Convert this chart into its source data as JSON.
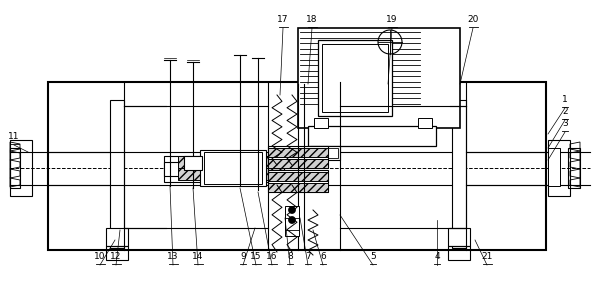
{
  "bg": "#ffffff",
  "lc": "#000000",
  "fig_w": 5.98,
  "fig_h": 2.82,
  "dpi": 100,
  "annotations": [
    [
      "1",
      [
        565,
        108
      ],
      [
        548,
        134
      ]
    ],
    [
      "2",
      [
        565,
        120
      ],
      [
        548,
        148
      ]
    ],
    [
      "3",
      [
        565,
        132
      ],
      [
        548,
        160
      ]
    ],
    [
      "4",
      [
        437,
        265
      ],
      [
        437,
        220
      ]
    ],
    [
      "5",
      [
        373,
        265
      ],
      [
        340,
        215
      ]
    ],
    [
      "6",
      [
        323,
        265
      ],
      [
        313,
        230
      ]
    ],
    [
      "7",
      [
        308,
        265
      ],
      [
        300,
        218
      ]
    ],
    [
      "8",
      [
        290,
        265
      ],
      [
        285,
        218
      ]
    ],
    [
      "9",
      [
        243,
        265
      ],
      [
        255,
        228
      ]
    ],
    [
      "10",
      [
        100,
        265
      ],
      [
        115,
        240
      ]
    ],
    [
      "11",
      [
        14,
        145
      ],
      [
        28,
        152
      ]
    ],
    [
      "12",
      [
        116,
        265
      ],
      [
        120,
        230
      ]
    ],
    [
      "13",
      [
        173,
        265
      ],
      [
        170,
        186
      ]
    ],
    [
      "14",
      [
        198,
        265
      ],
      [
        193,
        188
      ]
    ],
    [
      "15",
      [
        256,
        265
      ],
      [
        240,
        188
      ]
    ],
    [
      "16",
      [
        272,
        265
      ],
      [
        258,
        192
      ]
    ],
    [
      "17",
      [
        283,
        28
      ],
      [
        280,
        95
      ]
    ],
    [
      "18",
      [
        312,
        28
      ],
      [
        308,
        84
      ]
    ],
    [
      "19",
      [
        392,
        28
      ],
      [
        388,
        84
      ]
    ],
    [
      "20",
      [
        473,
        28
      ],
      [
        460,
        84
      ]
    ],
    [
      "21",
      [
        487,
        265
      ],
      [
        475,
        240
      ]
    ]
  ]
}
